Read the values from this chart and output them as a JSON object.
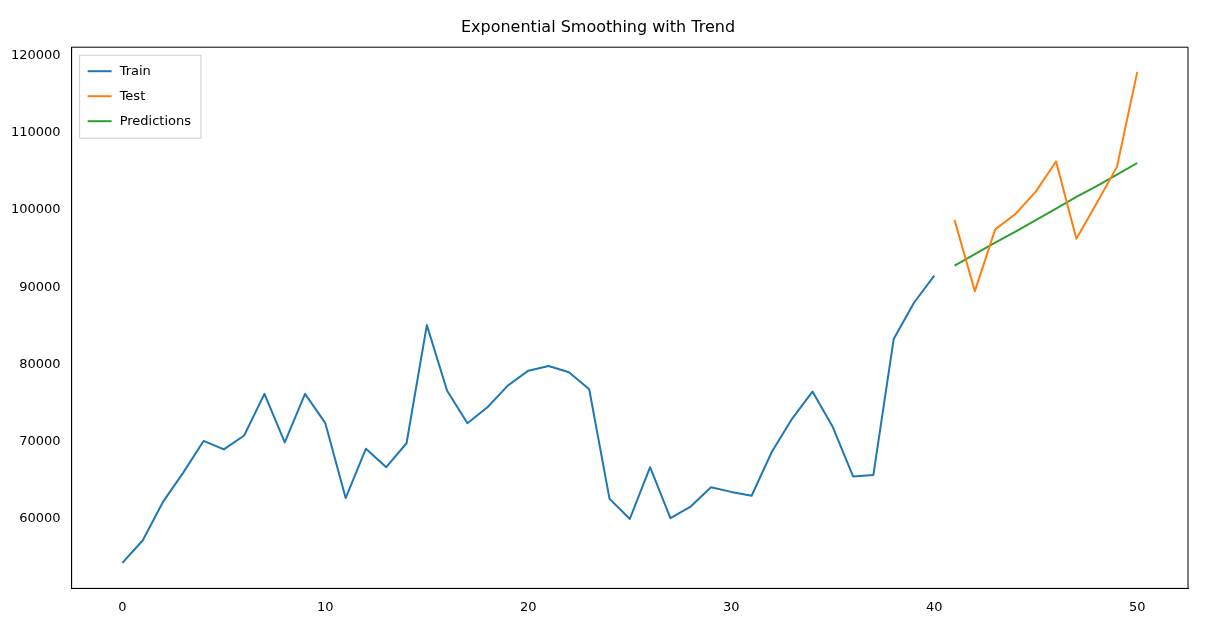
{
  "chart_data": {
    "type": "line",
    "title": "Exponential Smoothing with Trend",
    "xlim": [
      -2.5,
      52.5
    ],
    "xticks": [
      0,
      10,
      20,
      30,
      40,
      50
    ],
    "ylim": [
      51000,
      121100
    ],
    "yticks": [
      60000,
      70000,
      80000,
      90000,
      100000,
      110000,
      120000
    ],
    "grid": false,
    "legend": "top left",
    "marker": "none",
    "line_style": "solid",
    "series": [
      {
        "name": "Train",
        "color": "#1f77b4",
        "x": [
          0,
          1,
          2,
          3,
          4,
          5,
          6,
          7,
          8,
          9,
          10,
          11,
          12,
          13,
          14,
          15,
          16,
          17,
          18,
          19,
          20,
          21,
          22,
          23,
          24,
          25,
          26,
          27,
          28,
          29,
          30,
          31,
          32,
          33,
          34,
          35,
          36,
          37,
          38,
          39,
          40
        ],
        "values": [
          54300,
          57200,
          62200,
          66000,
          70100,
          69000,
          70800,
          76200,
          69900,
          76200,
          72400,
          62700,
          69100,
          66700,
          69800,
          85100,
          76600,
          72400,
          74500,
          77300,
          79200,
          79800,
          79000,
          76800,
          62600,
          60000,
          66700,
          60100,
          61600,
          64100,
          63500,
          63000,
          68700,
          73000,
          76500,
          71900,
          65500,
          65700,
          83300,
          88000,
          91500
        ]
      },
      {
        "name": "Test",
        "color": "#ff7f0e",
        "x": [
          41,
          42,
          43,
          44,
          45,
          46,
          47,
          48,
          49,
          50
        ],
        "values": [
          98700,
          89500,
          97500,
          99500,
          102400,
          106300,
          96300,
          100900,
          105600,
          117900
        ]
      },
      {
        "name": "Predictions",
        "color": "#2ca02c",
        "x": [
          41,
          42,
          43,
          44,
          45,
          46,
          47,
          48,
          49,
          50
        ],
        "values": [
          92800,
          94300,
          95800,
          97200,
          98700,
          100200,
          101700,
          103100,
          104600,
          106100
        ]
      }
    ]
  }
}
